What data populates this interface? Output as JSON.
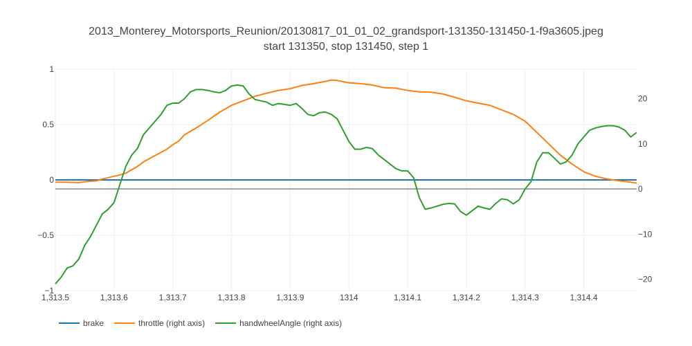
{
  "chart_data": {
    "type": "line",
    "title": "2013_Monterey_Motorsports_Reunion/20130817_01_01_02_grandsport-131350-131450-1-f9a3605.jpeg",
    "subtitle": "start 131350, stop 131450, step 1",
    "xlim": [
      1313.5,
      1314.49
    ],
    "x_ticks": [
      1313.5,
      1313.6,
      1313.7,
      1313.8,
      1313.9,
      1314.0,
      1314.1,
      1314.2,
      1314.3,
      1314.4
    ],
    "x_tick_labels": [
      "1,313.5",
      "1,313.6",
      "1,313.7",
      "1,313.8",
      "1,313.9",
      "1314",
      "1,314.1",
      "1,314.2",
      "1,314.3",
      "1,314.4"
    ],
    "y_left": {
      "range": [
        -1,
        1
      ],
      "ticks": [
        -1,
        -0.5,
        0,
        0.5,
        1
      ],
      "tick_labels": [
        "−1",
        "−0.5",
        "0",
        "0.5",
        "1"
      ]
    },
    "y_right": {
      "range": [
        -22.5,
        26.5
      ],
      "ticks": [
        -20,
        -10,
        0,
        10,
        20
      ],
      "tick_labels": [
        "−20",
        "−10",
        "0",
        "10",
        "20"
      ]
    },
    "grid": true,
    "legend_position": "bottom-left",
    "series": [
      {
        "name": "brake",
        "axis": "left",
        "color": "#1f77b4",
        "points": [
          [
            1313.5,
            0
          ],
          [
            1314.49,
            0
          ]
        ]
      },
      {
        "name": "throttle (right axis)",
        "axis": "right",
        "color": "#ff7f0e",
        "points": [
          [
            1313.5,
            1.5
          ],
          [
            1313.52,
            1.5
          ],
          [
            1313.54,
            1.4
          ],
          [
            1313.55,
            1.6
          ],
          [
            1313.57,
            1.8
          ],
          [
            1313.58,
            2.2
          ],
          [
            1313.6,
            2.8
          ],
          [
            1313.61,
            3.1
          ],
          [
            1313.62,
            3.5
          ],
          [
            1313.64,
            5.0
          ],
          [
            1313.65,
            6.0
          ],
          [
            1313.67,
            7.4
          ],
          [
            1313.69,
            8.8
          ],
          [
            1313.7,
            9.8
          ],
          [
            1313.71,
            10.6
          ],
          [
            1313.72,
            12.0
          ],
          [
            1313.74,
            13.5
          ],
          [
            1313.76,
            15.2
          ],
          [
            1313.78,
            17.0
          ],
          [
            1313.8,
            18.5
          ],
          [
            1313.82,
            19.5
          ],
          [
            1313.84,
            20.5
          ],
          [
            1313.86,
            21.2
          ],
          [
            1313.88,
            21.8
          ],
          [
            1313.9,
            22.2
          ],
          [
            1313.92,
            22.9
          ],
          [
            1313.94,
            23.3
          ],
          [
            1313.96,
            23.8
          ],
          [
            1313.97,
            24.1
          ],
          [
            1313.98,
            24.0
          ],
          [
            1314.0,
            23.5
          ],
          [
            1314.02,
            23.3
          ],
          [
            1314.04,
            23.0
          ],
          [
            1314.06,
            22.4
          ],
          [
            1314.08,
            22.3
          ],
          [
            1314.1,
            21.8
          ],
          [
            1314.12,
            21.5
          ],
          [
            1314.14,
            21.4
          ],
          [
            1314.16,
            21.0
          ],
          [
            1314.18,
            20.3
          ],
          [
            1314.2,
            19.5
          ],
          [
            1314.22,
            19.0
          ],
          [
            1314.24,
            18.5
          ],
          [
            1314.26,
            17.5
          ],
          [
            1314.28,
            16.5
          ],
          [
            1314.3,
            15.0
          ],
          [
            1314.32,
            12.5
          ],
          [
            1314.34,
            10.0
          ],
          [
            1314.36,
            7.5
          ],
          [
            1314.38,
            5.5
          ],
          [
            1314.4,
            3.8
          ],
          [
            1314.42,
            2.8
          ],
          [
            1314.44,
            2.2
          ],
          [
            1314.46,
            1.8
          ],
          [
            1314.48,
            1.5
          ],
          [
            1314.49,
            1.3
          ]
        ]
      },
      {
        "name": "handwheelAngle (right axis)",
        "axis": "right",
        "color": "#2ca02c",
        "points": [
          [
            1313.5,
            -21.0
          ],
          [
            1313.51,
            -19.5
          ],
          [
            1313.52,
            -17.5
          ],
          [
            1313.53,
            -17.0
          ],
          [
            1313.54,
            -15.5
          ],
          [
            1313.55,
            -12.5
          ],
          [
            1313.56,
            -10.5
          ],
          [
            1313.57,
            -8.0
          ],
          [
            1313.58,
            -5.5
          ],
          [
            1313.59,
            -4.5
          ],
          [
            1313.6,
            -3.0
          ],
          [
            1313.61,
            1.0
          ],
          [
            1313.62,
            5.0
          ],
          [
            1313.63,
            7.5
          ],
          [
            1313.64,
            9.0
          ],
          [
            1313.65,
            12.0
          ],
          [
            1313.66,
            13.5
          ],
          [
            1313.67,
            15.0
          ],
          [
            1313.68,
            16.5
          ],
          [
            1313.69,
            18.5
          ],
          [
            1313.7,
            19.0
          ],
          [
            1313.71,
            19.0
          ],
          [
            1313.72,
            20.0
          ],
          [
            1313.73,
            21.5
          ],
          [
            1313.74,
            22.0
          ],
          [
            1313.75,
            22.0
          ],
          [
            1313.76,
            21.8
          ],
          [
            1313.77,
            21.5
          ],
          [
            1313.78,
            21.3
          ],
          [
            1313.79,
            21.8
          ],
          [
            1313.8,
            22.8
          ],
          [
            1313.81,
            23.0
          ],
          [
            1313.82,
            22.8
          ],
          [
            1313.83,
            21.0
          ],
          [
            1313.84,
            19.8
          ],
          [
            1313.85,
            19.5
          ],
          [
            1313.86,
            19.2
          ],
          [
            1313.87,
            18.5
          ],
          [
            1313.88,
            18.9
          ],
          [
            1313.89,
            18.7
          ],
          [
            1313.9,
            18.5
          ],
          [
            1313.91,
            18.9
          ],
          [
            1313.92,
            17.8
          ],
          [
            1313.93,
            16.5
          ],
          [
            1313.94,
            16.2
          ],
          [
            1313.95,
            16.9
          ],
          [
            1313.96,
            17.0
          ],
          [
            1313.97,
            16.5
          ],
          [
            1313.98,
            15.5
          ],
          [
            1313.99,
            13.0
          ],
          [
            1314.0,
            10.5
          ],
          [
            1314.01,
            8.8
          ],
          [
            1314.02,
            8.8
          ],
          [
            1314.03,
            9.2
          ],
          [
            1314.04,
            8.9
          ],
          [
            1314.05,
            7.5
          ],
          [
            1314.06,
            6.5
          ],
          [
            1314.07,
            5.5
          ],
          [
            1314.08,
            4.5
          ],
          [
            1314.09,
            4.0
          ],
          [
            1314.1,
            4.0
          ],
          [
            1314.11,
            2.5
          ],
          [
            1314.12,
            -2.0
          ],
          [
            1314.13,
            -4.5
          ],
          [
            1314.14,
            -4.2
          ],
          [
            1314.15,
            -3.8
          ],
          [
            1314.16,
            -3.4
          ],
          [
            1314.17,
            -3.2
          ],
          [
            1314.18,
            -3.3
          ],
          [
            1314.19,
            -5.0
          ],
          [
            1314.2,
            -5.8
          ],
          [
            1314.21,
            -4.8
          ],
          [
            1314.22,
            -3.8
          ],
          [
            1314.23,
            -4.2
          ],
          [
            1314.24,
            -4.5
          ],
          [
            1314.25,
            -3.2
          ],
          [
            1314.26,
            -2.2
          ],
          [
            1314.27,
            -2.4
          ],
          [
            1314.28,
            -3.3
          ],
          [
            1314.29,
            -2.4
          ],
          [
            1314.3,
            0.0
          ],
          [
            1314.31,
            1.6
          ],
          [
            1314.32,
            6.0
          ],
          [
            1314.33,
            8.0
          ],
          [
            1314.34,
            8.0
          ],
          [
            1314.35,
            6.8
          ],
          [
            1314.36,
            5.5
          ],
          [
            1314.37,
            6.0
          ],
          [
            1314.38,
            7.5
          ],
          [
            1314.39,
            10.0
          ],
          [
            1314.4,
            11.5
          ],
          [
            1314.41,
            13.0
          ],
          [
            1314.42,
            13.5
          ],
          [
            1314.43,
            13.8
          ],
          [
            1314.44,
            14.0
          ],
          [
            1314.45,
            14.0
          ],
          [
            1314.46,
            13.7
          ],
          [
            1314.47,
            13.0
          ],
          [
            1314.48,
            11.5
          ],
          [
            1314.49,
            12.5
          ]
        ]
      }
    ]
  }
}
